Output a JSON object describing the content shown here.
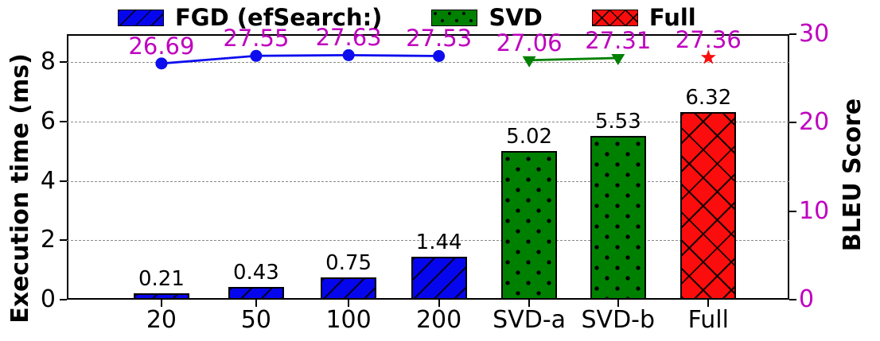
{
  "legend": {
    "items": [
      {
        "label": "FGD (efSearch:)",
        "style": "fgd",
        "color": "#0606ee",
        "hatch": "diagonal"
      },
      {
        "label": "SVD",
        "style": "svd",
        "color": "#008000",
        "hatch": "dots"
      },
      {
        "label": "Full",
        "style": "full",
        "color": "#fb0d0d",
        "hatch": "cross"
      }
    ]
  },
  "axes": {
    "left": {
      "label": "Execution time (ms)",
      "ticks": [
        8,
        6,
        4,
        2,
        0
      ],
      "color": "#000000"
    },
    "right": {
      "label": "BLEU Score",
      "ticks": [
        30,
        20,
        10,
        0
      ],
      "color": "#bf00bf"
    },
    "x": {
      "categories": [
        "20",
        "50",
        "100",
        "200",
        "SVD-a",
        "SVD-b",
        "Full"
      ]
    }
  },
  "chart_data": {
    "type": "bar+line",
    "categories": [
      "20",
      "50",
      "100",
      "200",
      "SVD-a",
      "SVD-b",
      "Full"
    ],
    "bar_series": [
      {
        "name": "FGD (efSearch:)",
        "style": "fgd",
        "values": [
          0.21,
          0.43,
          0.75,
          1.44,
          null,
          null,
          null
        ]
      },
      {
        "name": "SVD",
        "style": "svd",
        "values": [
          null,
          null,
          null,
          null,
          5.02,
          5.53,
          null
        ]
      },
      {
        "name": "Full",
        "style": "full",
        "values": [
          null,
          null,
          null,
          null,
          null,
          null,
          6.32
        ]
      }
    ],
    "line_series": [
      {
        "name": "FGD BLEU",
        "color": "#0d0dee",
        "marker": "circle",
        "values": [
          26.69,
          27.55,
          27.63,
          27.53,
          null,
          null,
          null
        ]
      },
      {
        "name": "SVD BLEU",
        "color": "#008000",
        "marker": "triangle-down",
        "values": [
          null,
          null,
          null,
          null,
          27.06,
          27.31,
          null
        ]
      },
      {
        "name": "Full BLEU",
        "color": "#fb0d0d",
        "marker": "star",
        "values": [
          null,
          null,
          null,
          null,
          null,
          null,
          27.36
        ]
      }
    ],
    "ylabel_left": "Execution time (ms)",
    "ylabel_right": "BLEU Score",
    "ylim_left": [
      0,
      8.95
    ],
    "ylim_right": [
      0,
      30
    ],
    "grid_values_left": [
      8,
      6,
      4,
      2
    ],
    "grid": "horizontal dashed gray at left-axis ticks",
    "legend_position": "top",
    "data_label_color": "#bf00bf",
    "centers_pct": [
      13.1,
      26.2,
      39.0,
      51.5,
      64.0,
      76.3,
      88.8
    ]
  }
}
